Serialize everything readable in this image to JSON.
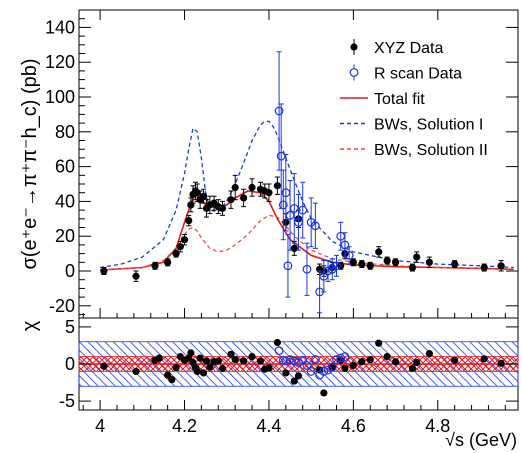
{
  "chart_data": [
    {
      "type": "scatter",
      "panel": "main",
      "ylabel": "σ(e⁺e⁻→π⁺π⁻h_c) (pb)",
      "xlim": [
        3.95,
        4.99
      ],
      "ylim": [
        -27,
        150
      ],
      "y_ticks": [
        -20,
        0,
        20,
        40,
        60,
        80,
        100,
        120,
        140
      ],
      "grid": false,
      "legend_position": "top-right",
      "legend": [
        {
          "label": "XYZ Data",
          "marker": "filled-circle"
        },
        {
          "label": "R scan Data",
          "marker": "open-circle"
        },
        {
          "label": "Total fit",
          "marker": "line-solid"
        },
        {
          "label": "BWs, Solution I",
          "marker": "line-dashed"
        },
        {
          "label": "BWs, Solution II",
          "marker": "line-dashed"
        }
      ],
      "series": [
        {
          "name": "XYZ Data",
          "kind": "points-filled",
          "color": "#000000",
          "x": [
            4.009,
            4.085,
            4.13,
            4.16,
            4.18,
            4.19,
            4.2,
            4.21,
            4.215,
            4.22,
            4.226,
            4.23,
            4.237,
            4.245,
            4.252,
            4.26,
            4.27,
            4.28,
            4.29,
            4.31,
            4.32,
            4.34,
            4.36,
            4.38,
            4.39,
            4.4,
            4.42,
            4.44,
            4.46,
            4.47,
            4.52,
            4.53,
            4.55,
            4.57,
            4.58,
            4.6,
            4.62,
            4.64,
            4.66,
            4.68,
            4.7,
            4.74,
            4.75,
            4.78,
            4.84,
            4.91,
            4.95
          ],
          "y": [
            0,
            -3,
            3,
            5,
            10,
            14,
            18,
            29,
            38,
            44,
            46,
            45,
            41,
            43,
            36,
            38,
            39,
            37,
            36,
            41,
            48,
            42,
            48,
            47,
            46,
            45,
            49,
            28,
            13,
            30,
            1,
            0,
            2,
            3,
            10,
            5,
            4,
            3,
            11,
            6,
            5,
            2,
            8,
            5,
            4,
            2,
            3
          ],
          "yerr": [
            2,
            3,
            2,
            2,
            2,
            3,
            3,
            3,
            4,
            5,
            5,
            5,
            5,
            4,
            5,
            5,
            4,
            4,
            4,
            5,
            7,
            5,
            5,
            4,
            4,
            5,
            5,
            5,
            4,
            5,
            3,
            3,
            3,
            2,
            3,
            2,
            2,
            2,
            3,
            2,
            2,
            2,
            3,
            3,
            2,
            2,
            3
          ]
        },
        {
          "name": "R scan Data",
          "kind": "points-open",
          "color": "#1a35e8",
          "x": [
            4.424,
            4.429,
            4.434,
            4.44,
            4.445,
            4.45,
            4.46,
            4.47,
            4.48,
            4.49,
            4.5,
            4.51,
            4.52,
            4.53,
            4.54,
            4.55,
            4.56,
            4.57,
            4.58,
            4.59
          ],
          "y": [
            92,
            66,
            38,
            45,
            3,
            32,
            36,
            28,
            35,
            1,
            28,
            26,
            -12,
            -3,
            0,
            1,
            3,
            20,
            15,
            9
          ],
          "yerr": [
            34,
            30,
            20,
            22,
            18,
            20,
            20,
            16,
            16,
            15,
            14,
            13,
            12,
            9,
            6,
            6,
            6,
            8,
            7,
            5
          ]
        },
        {
          "name": "Total fit",
          "kind": "line",
          "color": "#e31a1c",
          "dash": "solid",
          "x": [
            4.0,
            4.1,
            4.15,
            4.18,
            4.2,
            4.22,
            4.23,
            4.25,
            4.28,
            4.3,
            4.32,
            4.35,
            4.38,
            4.4,
            4.42,
            4.45,
            4.5,
            4.55,
            4.6,
            4.7,
            4.8,
            4.9,
            4.98
          ],
          "y": [
            0.5,
            2,
            5,
            13,
            28,
            42,
            44,
            38,
            36,
            38,
            42,
            46,
            45,
            40,
            30,
            18,
            9,
            5,
            3.5,
            2.5,
            2,
            1.5,
            1
          ]
        },
        {
          "name": "BWs, Solution I",
          "kind": "line",
          "color": "#1a35e8",
          "dash": "dashed",
          "x": [
            4.0,
            4.05,
            4.1,
            4.15,
            4.18,
            4.2,
            4.21,
            4.22,
            4.23,
            4.24,
            4.25,
            4.26,
            4.28,
            4.3,
            4.32,
            4.34,
            4.36,
            4.38,
            4.39,
            4.4,
            4.41,
            4.42,
            4.44,
            4.46,
            4.48,
            4.5,
            4.55,
            4.6,
            4.7,
            4.8,
            4.9,
            4.98
          ],
          "y": [
            2,
            4,
            8,
            18,
            35,
            56,
            70,
            82,
            80,
            65,
            45,
            35,
            34,
            40,
            50,
            62,
            75,
            84,
            86,
            86,
            83,
            78,
            65,
            52,
            40,
            30,
            17,
            11,
            6,
            4,
            3,
            2
          ]
        },
        {
          "name": "BWs, Solution II",
          "kind": "line",
          "color": "#e0524a",
          "dash": "dashed",
          "x": [
            4.0,
            4.1,
            4.15,
            4.18,
            4.2,
            4.21,
            4.22,
            4.23,
            4.24,
            4.26,
            4.28,
            4.3,
            4.32,
            4.35,
            4.38,
            4.4,
            4.42,
            4.44,
            4.46,
            4.5,
            4.55,
            4.6,
            4.7,
            4.8,
            4.9,
            4.98
          ],
          "y": [
            0.5,
            2,
            6,
            13,
            21,
            24,
            25,
            23,
            19,
            13,
            11,
            12,
            15,
            21,
            29,
            32,
            31,
            26,
            20,
            12,
            7,
            5,
            3,
            2,
            1.5,
            1
          ]
        }
      ]
    },
    {
      "type": "scatter",
      "panel": "residual",
      "ylabel": "χ",
      "xlabel": "√s (GeV)",
      "xlim": [
        3.95,
        4.99
      ],
      "ylim": [
        -6.2,
        6.2
      ],
      "x_ticks": [
        4.0,
        4.2,
        4.4,
        4.6,
        4.8
      ],
      "x_tick_labels": [
        "4",
        "4.2",
        "4.4",
        "4.6",
        "4.8"
      ],
      "y_ticks": [
        -5,
        0,
        5
      ],
      "bands": [
        {
          "y0": -3,
          "y1": 3,
          "color": "#1a35e8",
          "pattern": "hatch"
        },
        {
          "y0": -1,
          "y1": 1,
          "color": "#e31a1c",
          "pattern": "crosshatch"
        }
      ],
      "reference_line": {
        "y": 0,
        "color": "#e31a1c"
      },
      "series": [
        {
          "name": "XYZ Data",
          "kind": "points-filled",
          "color": "#000000",
          "x": [
            4.009,
            4.085,
            4.13,
            4.14,
            4.16,
            4.17,
            4.18,
            4.19,
            4.2,
            4.21,
            4.215,
            4.22,
            4.226,
            4.23,
            4.237,
            4.245,
            4.252,
            4.26,
            4.27,
            4.28,
            4.29,
            4.31,
            4.32,
            4.34,
            4.36,
            4.38,
            4.39,
            4.4,
            4.42,
            4.44,
            4.46,
            4.47,
            4.52,
            4.53,
            4.55,
            4.57,
            4.58,
            4.6,
            4.62,
            4.64,
            4.66,
            4.68,
            4.7,
            4.74,
            4.75,
            4.78,
            4.84,
            4.91,
            4.95
          ],
          "y": [
            -0.3,
            -1.0,
            0.5,
            0.8,
            -1.5,
            -2.1,
            -0.5,
            1.0,
            0.5,
            0.8,
            1.5,
            0.2,
            -0.5,
            -1.0,
            0.8,
            -1.2,
            0.4,
            -0.4,
            0.3,
            0.4,
            -0.6,
            1.3,
            0.6,
            0.4,
            1.0,
            0.4,
            -0.7,
            -0.5,
            2.9,
            -1.2,
            -2.3,
            -1.6,
            -0.8,
            -3.9,
            -0.5,
            0.5,
            -0.6,
            -0.2,
            0.3,
            0.6,
            2.8,
            1.0,
            0.3,
            -0.6,
            0.2,
            1.4,
            0.5,
            0.7,
            0.1
          ]
        },
        {
          "name": "R scan Data",
          "kind": "points-open",
          "color": "#1a35e8",
          "x": [
            4.424,
            4.434,
            4.44,
            4.45,
            4.46,
            4.47,
            4.48,
            4.49,
            4.5,
            4.51,
            4.52,
            4.53,
            4.54,
            4.55,
            4.56,
            4.57,
            4.58
          ],
          "y": [
            1.8,
            0.5,
            0.4,
            0.6,
            0.4,
            0.2,
            0.5,
            -0.2,
            -1.0,
            0.6,
            -1.5,
            -1.0,
            -0.8,
            -0.4,
            0.6,
            0.8,
            1.0
          ]
        }
      ]
    }
  ]
}
